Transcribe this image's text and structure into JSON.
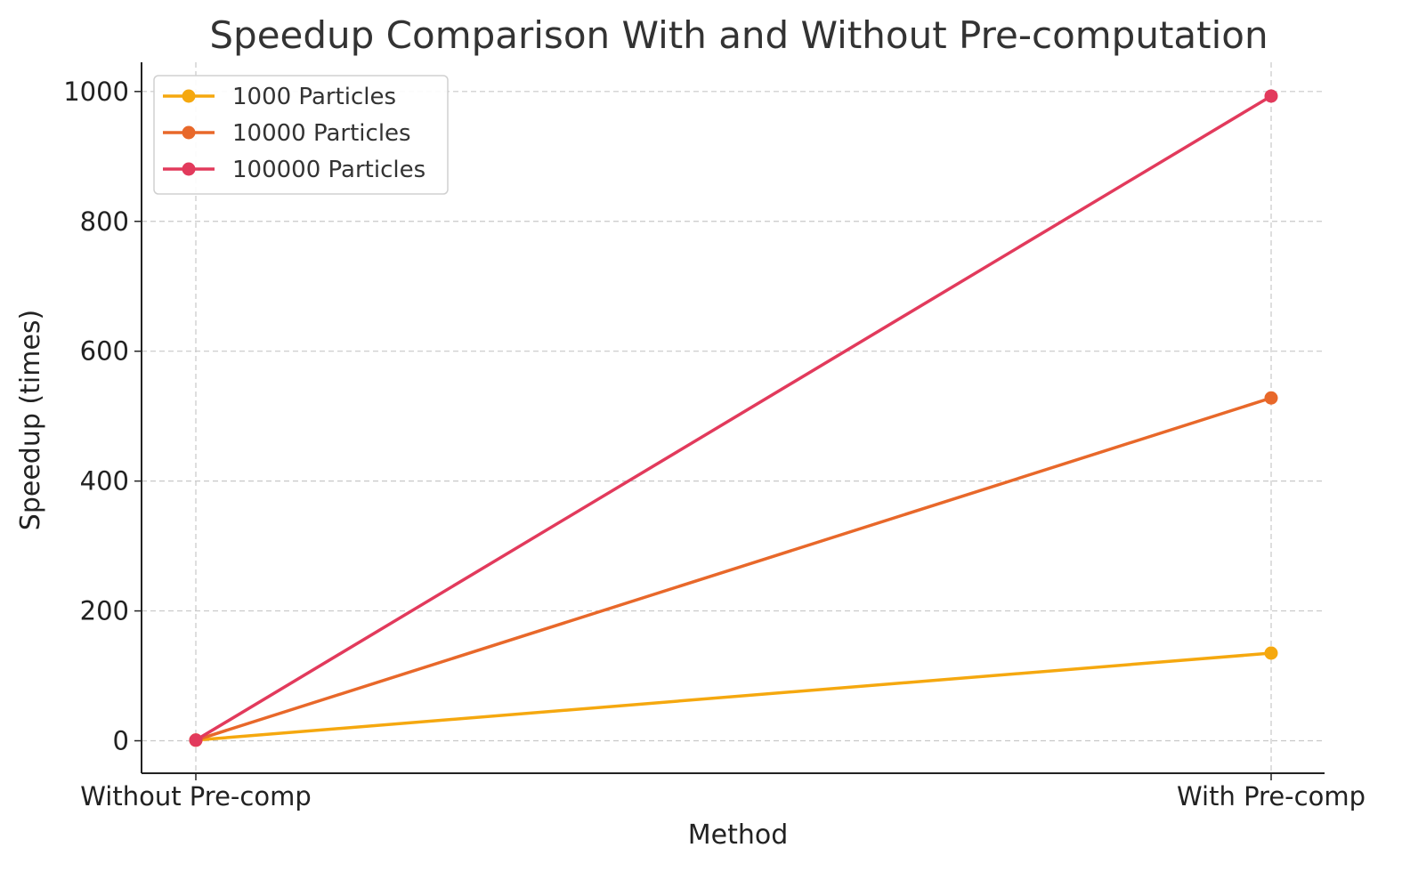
{
  "chart_data": {
    "type": "line",
    "title": "Speedup Comparison With and Without Pre-computation",
    "xlabel": "Method",
    "ylabel": "Speedup (times)",
    "categories": [
      "Without Pre-comp",
      "With Pre-comp"
    ],
    "ylim": [
      -50,
      1045
    ],
    "yticks": [
      0,
      200,
      400,
      600,
      800,
      1000
    ],
    "grid": true,
    "legend_position": "top-left",
    "series": [
      {
        "name": "1000 Particles",
        "color": "#F5A80F",
        "values": [
          1,
          135
        ]
      },
      {
        "name": "10000 Particles",
        "color": "#E8682A",
        "values": [
          1,
          528
        ]
      },
      {
        "name": "100000 Particles",
        "color": "#E23A5C",
        "values": [
          1,
          993
        ]
      }
    ]
  }
}
